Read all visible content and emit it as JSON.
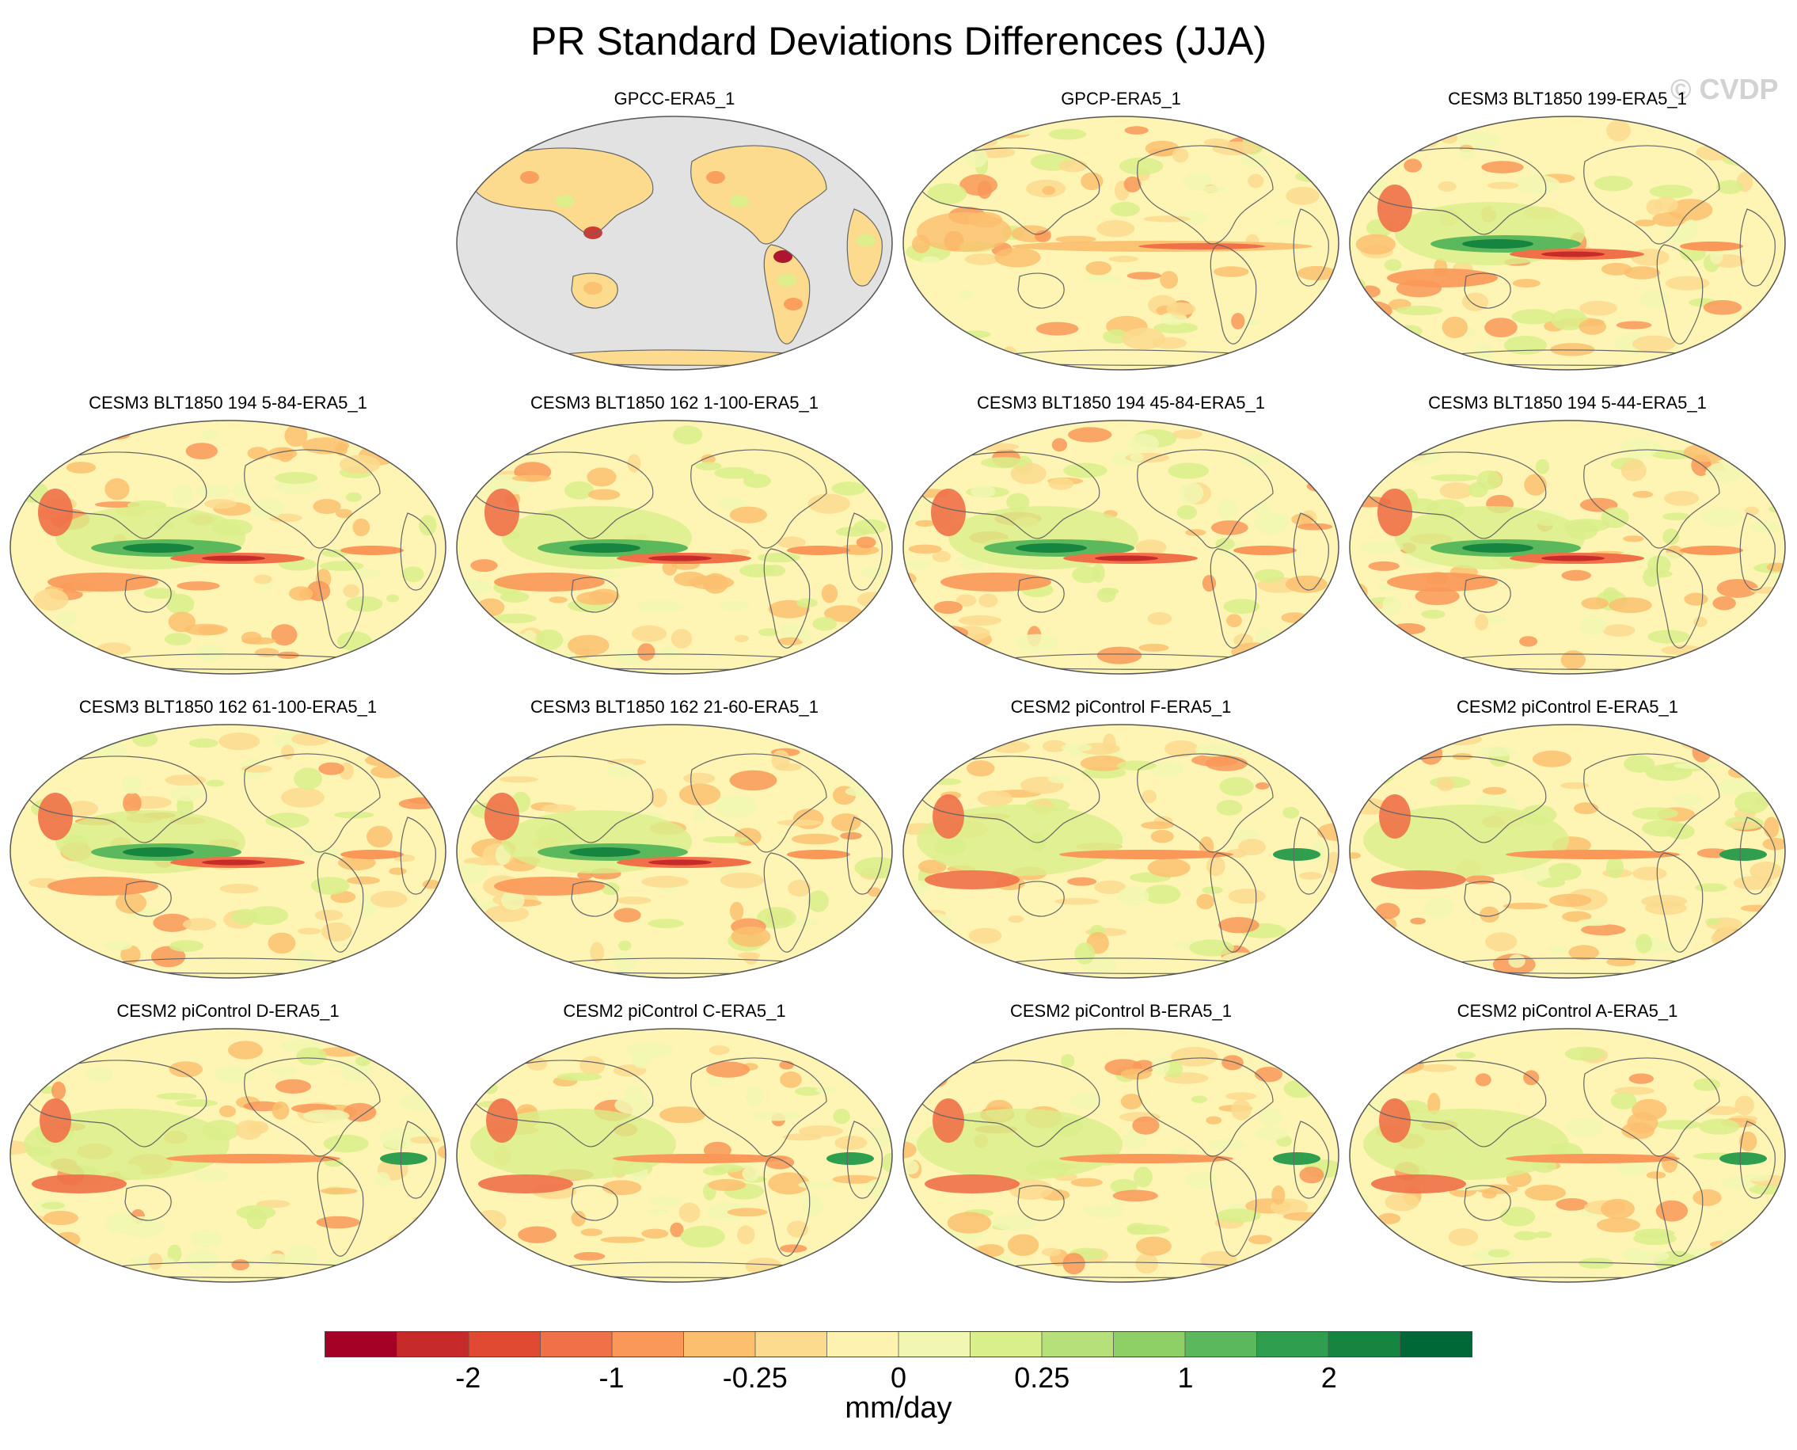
{
  "figure": {
    "title": "PR Standard Deviations Differences (JJA)",
    "watermark": "© CVDP"
  },
  "panels": [
    {
      "label": "GPCC-ERA5_1",
      "land_only": true
    },
    {
      "label": "GPCP-ERA5_1"
    },
    {
      "label": "CESM3 BLT1850 199-ERA5_1"
    },
    {
      "label": "CESM3 BLT1850 194 5-84-ERA5_1"
    },
    {
      "label": "CESM3 BLT1850 162 1-100-ERA5_1"
    },
    {
      "label": "CESM3 BLT1850 194 45-84-ERA5_1"
    },
    {
      "label": "CESM3 BLT1850 194 5-44-ERA5_1"
    },
    {
      "label": "CESM3 BLT1850 162 61-100-ERA5_1"
    },
    {
      "label": "CESM3 BLT1850 162 21-60-ERA5_1"
    },
    {
      "label": "CESM2 piControl F-ERA5_1"
    },
    {
      "label": "CESM2 piControl E-ERA5_1"
    },
    {
      "label": "CESM2 piControl D-ERA5_1"
    },
    {
      "label": "CESM2 piControl C-ERA5_1"
    },
    {
      "label": "CESM2 piControl B-ERA5_1"
    },
    {
      "label": "CESM2 piControl A-ERA5_1"
    }
  ],
  "colorbar": {
    "units": "mm/day",
    "colors": [
      "#a50026",
      "#c62a2a",
      "#e04a32",
      "#f07048",
      "#f99858",
      "#fbbf6e",
      "#fcdb8e",
      "#fdf2b0",
      "#f1f7b2",
      "#d9ef8b",
      "#b5e07a",
      "#8ecf66",
      "#5cb85c",
      "#2f9e4e",
      "#158540",
      "#006837"
    ],
    "tick_labels": [
      "-2",
      "-1",
      "-0.25",
      "0",
      "0.25",
      "1",
      "2"
    ],
    "tick_boundaries": [
      2,
      4,
      6,
      8,
      10,
      12,
      14
    ]
  },
  "map_colors": {
    "background": "#fef4b4",
    "land_gray": "#e2e2e2",
    "coast": "#666666"
  }
}
